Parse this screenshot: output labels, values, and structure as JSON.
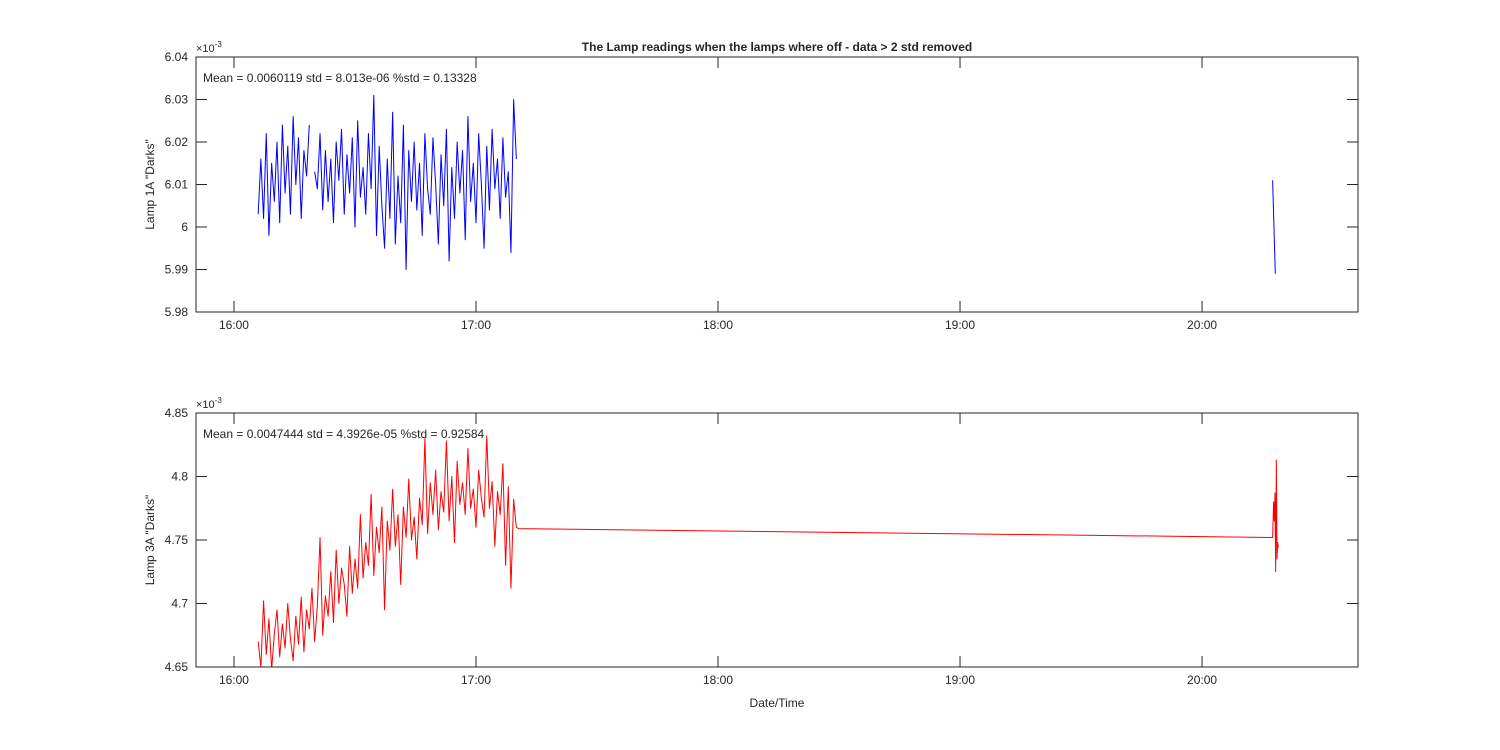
{
  "figure_title": "The Lamp readings when the lamps where off - data > 2 std removed",
  "xlabel": "Date/Time",
  "chart_data": [
    {
      "type": "line",
      "title": "The Lamp readings when the lamps where off - data > 2 std removed",
      "ylabel": "Lamp 1A \"Darks\"",
      "xlabel": "",
      "annotation": "Mean = 0.0060119  std = 8.013e-06  %std = 0.13328",
      "y_multiplier": "×10",
      "y_exponent": "-3",
      "xlim": [
        "15:50:35",
        "20:38:40"
      ],
      "ylim": [
        5.98,
        6.04
      ],
      "xticks": [
        "16:00",
        "17:00",
        "18:00",
        "19:00",
        "20:00"
      ],
      "yticks": [
        5.98,
        5.99,
        6,
        6.01,
        6.02,
        6.03,
        6.04
      ],
      "ytick_labels": [
        "5.98",
        "5.99",
        "6",
        "6.01",
        "6.02",
        "6.03",
        "6.04"
      ],
      "grid": false,
      "color": "#0000ff",
      "segments": [
        {
          "x": [
            "16:06:00",
            "16:06:40",
            "16:07:20",
            "16:08:00",
            "16:08:40",
            "16:09:20",
            "16:10:00",
            "16:10:40",
            "16:11:20",
            "16:12:00",
            "16:12:40",
            "16:13:20",
            "16:14:00",
            "16:14:40",
            "16:15:20",
            "16:16:00",
            "16:16:40",
            "16:17:20",
            "16:18:00",
            "16:18:40",
            "16:19:20",
            "16:20:00",
            "16:20:40",
            "16:21:20",
            "16:22:00",
            "16:22:40",
            "16:23:20",
            "16:24:00",
            "16:24:40",
            "16:25:20",
            "16:26:00",
            "16:26:40",
            "16:27:20",
            "16:28:00",
            "16:28:40",
            "16:29:20",
            "16:30:00",
            "16:30:40",
            "16:31:20",
            "16:32:00",
            "16:32:40",
            "16:33:20",
            "16:34:00",
            "16:34:40",
            "16:35:20",
            "16:36:00",
            "16:36:40",
            "16:37:20",
            "16:38:00",
            "16:38:40",
            "16:39:20",
            "16:40:00",
            "16:40:40",
            "16:41:20",
            "16:42:00",
            "16:42:40",
            "16:43:20",
            "16:44:00",
            "16:44:40",
            "16:45:20",
            "16:46:00",
            "16:46:40",
            "16:47:20",
            "16:48:00",
            "16:48:40",
            "16:49:20",
            "16:50:00",
            "16:50:40",
            "16:51:20",
            "16:52:00",
            "16:52:40",
            "16:53:20",
            "16:54:00",
            "16:54:40",
            "16:55:20",
            "16:56:00",
            "16:56:40",
            "16:57:20",
            "16:58:00",
            "16:58:40",
            "16:59:20",
            "17:00:00",
            "17:00:40",
            "17:01:20",
            "17:02:00",
            "17:02:40",
            "17:03:20",
            "17:04:00",
            "17:04:40",
            "17:05:20",
            "17:06:00",
            "17:06:40",
            "17:07:20",
            "17:08:00",
            "17:08:40",
            "17:09:20",
            "17:10:00"
          ],
          "y": [
            6.003,
            6.016,
            6.002,
            6.022,
            5.998,
            6.015,
            6.006,
            6.02,
            6.001,
            6.024,
            6.008,
            6.019,
            6.003,
            6.026,
            6.01,
            6.021,
            6.002,
            6.018,
            6.012,
            6.024,
            null,
            6.013,
            6.009,
            6.022,
            6.004,
            6.018,
            6.006,
            6.016,
            6.001,
            6.02,
            6.011,
            6.023,
            6.003,
            6.017,
            6.008,
            6.021,
            6.0,
            6.025,
            6.007,
            6.014,
            6.003,
            6.022,
            6.009,
            6.031,
            5.998,
            6.019,
            6.005,
            5.995,
            6.016,
            6.002,
            6.027,
            5.996,
            6.012,
            6.001,
            6.024,
            5.99,
            6.018,
            6.006,
            6.02,
            6.004,
            6.015,
            5.998,
            6.022,
            6.009,
            6.003,
            6.021,
            6.01,
            5.996,
            6.017,
            6.005,
            6.023,
            5.992,
            6.014,
            6.002,
            6.02,
            6.008,
            6.018,
            5.997,
            6.026,
            6.006,
            6.015,
            6.001,
            6.022,
            6.01,
            5.995,
            6.019,
            6.004,
            6.023,
            6.009,
            6.016,
            6.002,
            6.021,
            6.007,
            6.013,
            5.994,
            6.03,
            6.016
          ]
        },
        {
          "x": [
            "20:17:30",
            "20:18:10"
          ],
          "y": [
            6.011,
            5.989
          ]
        }
      ]
    },
    {
      "type": "line",
      "ylabel": "Lamp 3A \"Darks\"",
      "xlabel": "Date/Time",
      "annotation": "Mean = 0.0047444  std = 4.3926e-05  %std = 0.92584",
      "y_multiplier": "×10",
      "y_exponent": "-3",
      "xlim": [
        "15:50:35",
        "20:38:40"
      ],
      "ylim": [
        4.65,
        4.85
      ],
      "xticks": [
        "16:00",
        "17:00",
        "18:00",
        "19:00",
        "20:00"
      ],
      "yticks": [
        4.65,
        4.7,
        4.75,
        4.8,
        4.85
      ],
      "ytick_labels": [
        "4.65",
        "4.7",
        "4.75",
        "4.8",
        "4.85"
      ],
      "grid": false,
      "color": "#ff0000",
      "segments": [
        {
          "x": [
            "16:06:00",
            "16:06:40",
            "16:07:20",
            "16:08:00",
            "16:08:40",
            "16:09:20",
            "16:10:00",
            "16:10:40",
            "16:11:20",
            "16:12:00",
            "16:12:40",
            "16:13:20",
            "16:14:00",
            "16:14:40",
            "16:15:20",
            "16:16:00",
            "16:16:40",
            "16:17:20",
            "16:18:00",
            "16:18:40",
            "16:19:20",
            "16:20:00",
            "16:20:40",
            "16:21:20",
            "16:22:00",
            "16:22:40",
            "16:23:20",
            "16:24:00",
            "16:24:40",
            "16:25:20",
            "16:26:00",
            "16:26:40",
            "16:27:20",
            "16:28:00",
            "16:28:40",
            "16:29:20",
            "16:30:00",
            "16:30:40",
            "16:31:20",
            "16:32:00",
            "16:32:40",
            "16:33:20",
            "16:34:00",
            "16:34:40",
            "16:35:20",
            "16:36:00",
            "16:36:40",
            "16:37:20",
            "16:38:00",
            "16:38:40",
            "16:39:20",
            "16:40:00",
            "16:40:40",
            "16:41:20",
            "16:42:00",
            "16:42:40",
            "16:43:20",
            "16:44:00",
            "16:44:40",
            "16:45:20",
            "16:46:00",
            "16:46:40",
            "16:47:20",
            "16:48:00",
            "16:48:40",
            "16:49:20",
            "16:50:00",
            "16:50:40",
            "16:51:20",
            "16:52:00",
            "16:52:40",
            "16:53:20",
            "16:54:00",
            "16:54:40",
            "16:55:20",
            "16:56:00",
            "16:56:40",
            "16:57:20",
            "16:58:00",
            "16:58:40",
            "16:59:20",
            "17:00:00",
            "17:00:40",
            "17:01:20",
            "17:02:00",
            "17:02:40",
            "17:03:20",
            "17:04:00",
            "17:04:40",
            "17:05:20",
            "17:06:00",
            "17:06:40",
            "17:07:20",
            "17:08:00",
            "17:08:40",
            "17:09:20",
            "17:10:00",
            "17:10:30",
            "20:17:30",
            "20:17:45",
            "20:17:55",
            "20:18:05",
            "20:18:15",
            "20:18:25",
            "20:18:35",
            "20:18:45",
            "20:18:55"
          ],
          "y": [
            4.67,
            4.65,
            4.702,
            4.66,
            4.688,
            4.648,
            4.676,
            4.695,
            4.658,
            4.684,
            4.665,
            4.7,
            4.672,
            4.655,
            4.69,
            4.668,
            4.705,
            4.662,
            4.695,
            4.68,
            4.712,
            4.67,
            4.698,
            4.752,
            4.675,
            4.706,
            4.69,
            4.725,
            4.685,
            4.742,
            4.7,
            4.728,
            4.715,
            4.69,
            4.745,
            4.708,
            4.735,
            4.712,
            4.77,
            4.72,
            4.748,
            4.73,
            4.786,
            4.722,
            4.76,
            4.74,
            4.776,
            4.695,
            4.765,
            4.742,
            4.79,
            4.745,
            4.77,
            4.715,
            4.776,
            4.752,
            4.798,
            4.75,
            4.768,
            4.735,
            4.783,
            4.762,
            4.83,
            4.755,
            4.795,
            4.77,
            4.805,
            4.758,
            4.788,
            4.772,
            4.828,
            4.765,
            4.8,
            4.748,
            4.812,
            4.778,
            4.795,
            4.77,
            4.822,
            4.775,
            4.79,
            4.76,
            4.805,
            4.783,
            4.768,
            4.832,
            4.775,
            4.796,
            4.745,
            4.788,
            4.77,
            4.81,
            4.73,
            4.792,
            4.712,
            4.782,
            4.76,
            4.759,
            4.752,
            4.78,
            4.765,
            4.787,
            4.725,
            4.813,
            4.735,
            4.748,
            4.744
          ]
        }
      ]
    }
  ]
}
